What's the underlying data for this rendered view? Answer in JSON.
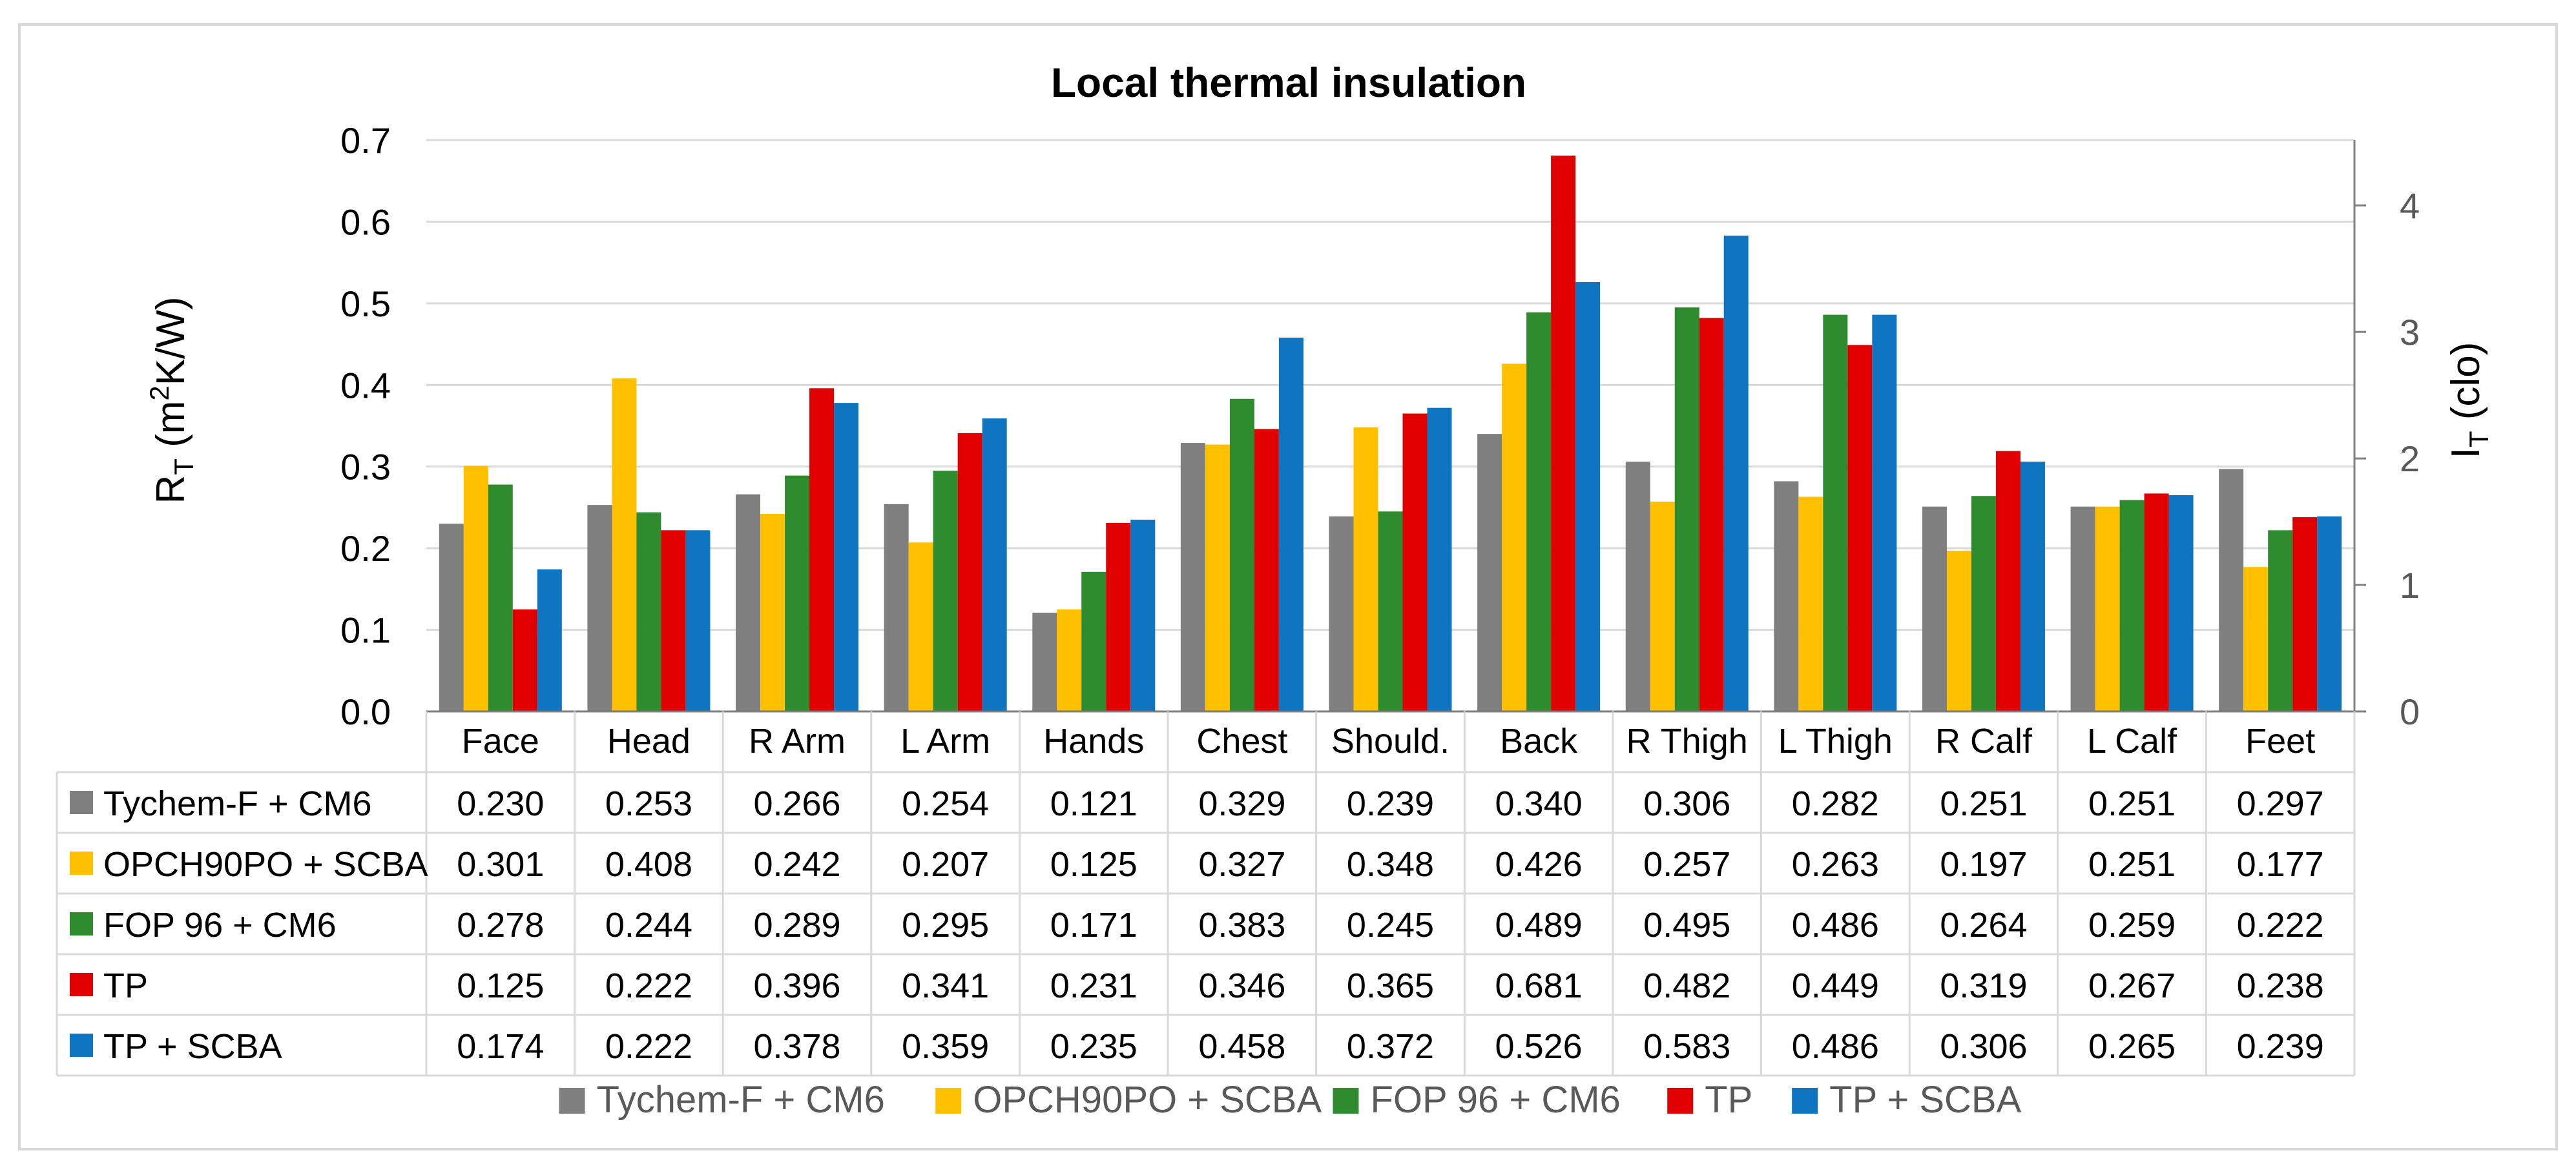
{
  "chart_data": {
    "type": "bar",
    "title": "Local thermal insulation",
    "ylabel": {
      "main": "R",
      "sub": "T",
      "rest": " (m",
      "sup": "2",
      "tail": "K/W)"
    },
    "y2label": {
      "main": "I",
      "sub": "T",
      "rest": " (clo)"
    },
    "ylim": [
      0,
      0.7
    ],
    "yticks": [
      "0.0",
      "0.1",
      "0.2",
      "0.3",
      "0.4",
      "0.5",
      "0.6",
      "0.7"
    ],
    "y2lim": [
      0,
      4.5161
    ],
    "y2ticks": [
      "0",
      "1",
      "2",
      "3",
      "4"
    ],
    "categories": [
      "Face",
      "Head",
      "R Arm",
      "L Arm",
      "Hands",
      "Chest",
      "Should.",
      "Back",
      "R Thigh",
      "L Thigh",
      "R Calf",
      "L Calf",
      "Feet"
    ],
    "legend_position": "bottom",
    "data_table": true,
    "series": [
      {
        "name": "Tychem-F + CM6",
        "color": "#7f7f7f",
        "values": [
          0.23,
          0.253,
          0.266,
          0.254,
          0.121,
          0.329,
          0.239,
          0.34,
          0.306,
          0.282,
          0.251,
          0.251,
          0.297
        ],
        "labels": [
          "0.230",
          "0.253",
          "0.266",
          "0.254",
          "0.121",
          "0.329",
          "0.239",
          "0.340",
          "0.306",
          "0.282",
          "0.251",
          "0.251",
          "0.297"
        ]
      },
      {
        "name": "OPCH90PO + SCBA",
        "color": "#ffc000",
        "values": [
          0.301,
          0.408,
          0.242,
          0.207,
          0.125,
          0.327,
          0.348,
          0.426,
          0.257,
          0.263,
          0.197,
          0.251,
          0.177
        ],
        "labels": [
          "0.301",
          "0.408",
          "0.242",
          "0.207",
          "0.125",
          "0.327",
          "0.348",
          "0.426",
          "0.257",
          "0.263",
          "0.197",
          "0.251",
          "0.177"
        ]
      },
      {
        "name": "FOP 96 + CM6",
        "color": "#2e8b2e",
        "values": [
          0.278,
          0.244,
          0.289,
          0.295,
          0.171,
          0.383,
          0.245,
          0.489,
          0.495,
          0.486,
          0.264,
          0.259,
          0.222
        ],
        "labels": [
          "0.278",
          "0.244",
          "0.289",
          "0.295",
          "0.171",
          "0.383",
          "0.245",
          "0.489",
          "0.495",
          "0.486",
          "0.264",
          "0.259",
          "0.222"
        ]
      },
      {
        "name": "TP",
        "color": "#e00000",
        "values": [
          0.125,
          0.222,
          0.396,
          0.341,
          0.231,
          0.346,
          0.365,
          0.681,
          0.482,
          0.449,
          0.319,
          0.267,
          0.238
        ],
        "labels": [
          "0.125",
          "0.222",
          "0.396",
          "0.341",
          "0.231",
          "0.346",
          "0.365",
          "0.681",
          "0.482",
          "0.449",
          "0.319",
          "0.267",
          "0.238"
        ]
      },
      {
        "name": "TP + SCBA",
        "color": "#0f75c0",
        "values": [
          0.174,
          0.222,
          0.378,
          0.359,
          0.235,
          0.458,
          0.372,
          0.526,
          0.583,
          0.486,
          0.306,
          0.265,
          0.239
        ],
        "labels": [
          "0.174",
          "0.222",
          "0.378",
          "0.359",
          "0.235",
          "0.458",
          "0.372",
          "0.526",
          "0.583",
          "0.486",
          "0.306",
          "0.265",
          "0.239"
        ]
      }
    ]
  }
}
